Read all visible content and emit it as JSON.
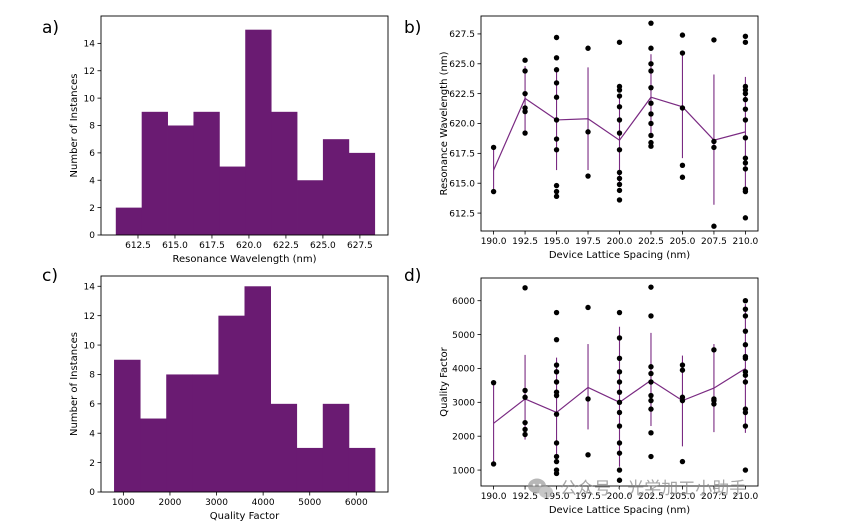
{
  "colors": {
    "bar": "#6a1b72",
    "line": "#7a2a82",
    "point": "#000000",
    "axis": "#000000"
  },
  "watermark": {
    "text": "公众号 · 光学加工小助手",
    "icon": "wechat-icon"
  },
  "chart_data": [
    {
      "id": "a",
      "panel_label": "a)",
      "type": "bar",
      "xlabel": "Resonance Wavelength (nm)",
      "ylabel": "Number of Instances",
      "bin_edges": [
        611.0,
        612.75,
        614.5,
        616.25,
        618.0,
        619.75,
        621.5,
        623.25,
        625.0,
        626.75,
        628.5
      ],
      "values": [
        2,
        9,
        8,
        9,
        5,
        15,
        9,
        4,
        7,
        6
      ],
      "xlim": [
        610.0,
        629.4
      ],
      "ylim": [
        0,
        16
      ],
      "xticks": [
        612.5,
        615.0,
        617.5,
        620.0,
        622.5,
        625.0,
        627.5
      ],
      "xtick_labels": [
        "612.5",
        "615.0",
        "617.5",
        "620.0",
        "622.5",
        "625.0",
        "627.5"
      ],
      "yticks": [
        0,
        2,
        4,
        6,
        8,
        10,
        12,
        14
      ],
      "ytick_labels": [
        "0",
        "2",
        "4",
        "6",
        "8",
        "10",
        "12",
        "14"
      ]
    },
    {
      "id": "b",
      "panel_label": "b)",
      "type": "scatter",
      "xlabel": "Device Lattice Spacing (nm)",
      "ylabel": "Resonance Wavelength (nm)",
      "xlim": [
        189.0,
        211.0
      ],
      "ylim": [
        611.0,
        629.0
      ],
      "xticks": [
        190.0,
        192.5,
        195.0,
        197.5,
        200.0,
        202.5,
        205.0,
        207.5,
        210.0
      ],
      "xtick_labels": [
        "190.0",
        "192.5",
        "195.0",
        "197.5",
        "200.0",
        "202.5",
        "205.0",
        "207.5",
        "210.0"
      ],
      "yticks": [
        612.5,
        615.0,
        617.5,
        620.0,
        622.5,
        625.0,
        627.5
      ],
      "ytick_labels": [
        "612.5",
        "615.0",
        "617.5",
        "620.0",
        "622.5",
        "625.0",
        "627.5"
      ],
      "points": [
        [
          190.0,
          614.3
        ],
        [
          190.0,
          618.0
        ],
        [
          192.5,
          619.2
        ],
        [
          192.5,
          621.0
        ],
        [
          192.5,
          621.3
        ],
        [
          192.5,
          622.5
        ],
        [
          192.5,
          624.4
        ],
        [
          192.5,
          625.3
        ],
        [
          195.0,
          613.9
        ],
        [
          195.0,
          614.3
        ],
        [
          195.0,
          614.8
        ],
        [
          195.0,
          617.8
        ],
        [
          195.0,
          618.7
        ],
        [
          195.0,
          620.3
        ],
        [
          195.0,
          622.2
        ],
        [
          195.0,
          623.4
        ],
        [
          195.0,
          624.5
        ],
        [
          195.0,
          625.5
        ],
        [
          195.0,
          627.2
        ],
        [
          197.5,
          615.6
        ],
        [
          197.5,
          619.3
        ],
        [
          197.5,
          626.3
        ],
        [
          200.0,
          613.6
        ],
        [
          200.0,
          614.4
        ],
        [
          200.0,
          614.9
        ],
        [
          200.0,
          615.4
        ],
        [
          200.0,
          615.9
        ],
        [
          200.0,
          617.8
        ],
        [
          200.0,
          619.2
        ],
        [
          200.0,
          620.3
        ],
        [
          200.0,
          621.4
        ],
        [
          200.0,
          622.3
        ],
        [
          200.0,
          622.8
        ],
        [
          200.0,
          623.1
        ],
        [
          200.0,
          626.8
        ],
        [
          202.5,
          618.1
        ],
        [
          202.5,
          618.4
        ],
        [
          202.5,
          619.0
        ],
        [
          202.5,
          620.0
        ],
        [
          202.5,
          620.8
        ],
        [
          202.5,
          621.7
        ],
        [
          202.5,
          623.0
        ],
        [
          202.5,
          624.4
        ],
        [
          202.5,
          625.0
        ],
        [
          202.5,
          626.3
        ],
        [
          202.5,
          628.4
        ],
        [
          205.0,
          615.5
        ],
        [
          205.0,
          616.5
        ],
        [
          205.0,
          621.3
        ],
        [
          205.0,
          625.9
        ],
        [
          205.0,
          627.4
        ],
        [
          207.5,
          611.4
        ],
        [
          207.5,
          618.0
        ],
        [
          207.5,
          618.5
        ],
        [
          207.5,
          627.0
        ],
        [
          210.0,
          612.1
        ],
        [
          210.0,
          614.3
        ],
        [
          210.0,
          614.5
        ],
        [
          210.0,
          616.2
        ],
        [
          210.0,
          616.7
        ],
        [
          210.0,
          617.1
        ],
        [
          210.0,
          618.8
        ],
        [
          210.0,
          620.3
        ],
        [
          210.0,
          621.2
        ],
        [
          210.0,
          622.0
        ],
        [
          210.0,
          622.5
        ],
        [
          210.0,
          622.8
        ],
        [
          210.0,
          623.1
        ],
        [
          210.0,
          626.8
        ],
        [
          210.0,
          627.3
        ]
      ],
      "mean": [
        616.1,
        622.1,
        620.3,
        620.4,
        618.6,
        622.2,
        621.4,
        618.6,
        619.3
      ],
      "err_low": [
        614.3,
        619.4,
        616.1,
        616.1,
        614.9,
        618.8,
        617.1,
        613.2,
        614.7
      ],
      "err_high": [
        617.9,
        624.8,
        624.5,
        624.7,
        622.4,
        625.8,
        625.7,
        624.1,
        623.9
      ]
    },
    {
      "id": "c",
      "panel_label": "c)",
      "type": "bar",
      "xlabel": "Quality Factor",
      "ylabel": "Number of Instances",
      "bin_edges": [
        800,
        1360,
        1920,
        2480,
        3040,
        3600,
        4160,
        4720,
        5280,
        5840,
        6400
      ],
      "values": [
        9,
        5,
        8,
        8,
        12,
        14,
        6,
        3,
        6,
        3
      ],
      "xlim": [
        520,
        6680
      ],
      "ylim": [
        0,
        14.7
      ],
      "xticks": [
        1000,
        2000,
        3000,
        4000,
        5000,
        6000
      ],
      "xtick_labels": [
        "1000",
        "2000",
        "3000",
        "4000",
        "5000",
        "6000"
      ],
      "yticks": [
        0,
        2,
        4,
        6,
        8,
        10,
        12,
        14
      ],
      "ytick_labels": [
        "0",
        "2",
        "4",
        "6",
        "8",
        "10",
        "12",
        "14"
      ]
    },
    {
      "id": "d",
      "panel_label": "d)",
      "type": "scatter",
      "xlabel": "Device Lattice Spacing (nm)",
      "ylabel": "Quality Factor",
      "xlim": [
        189.0,
        211.0
      ],
      "ylim": [
        530,
        6670
      ],
      "xticks": [
        190.0,
        192.5,
        195.0,
        197.5,
        200.0,
        202.5,
        205.0,
        207.5,
        210.0
      ],
      "xtick_labels": [
        "190.0",
        "192.5",
        "195.0",
        "197.5",
        "200.0",
        "202.5",
        "205.0",
        "207.5",
        "210.0"
      ],
      "yticks": [
        1000,
        2000,
        3000,
        4000,
        5000,
        6000
      ],
      "ytick_labels": [
        "1000",
        "2000",
        "3000",
        "4000",
        "5000",
        "6000"
      ],
      "points": [
        [
          190.0,
          1180
        ],
        [
          190.0,
          3580
        ],
        [
          192.5,
          2050
        ],
        [
          192.5,
          2200
        ],
        [
          192.5,
          2400
        ],
        [
          192.5,
          3150
        ],
        [
          192.5,
          3350
        ],
        [
          192.5,
          6380
        ],
        [
          195.0,
          900
        ],
        [
          195.0,
          1000
        ],
        [
          195.0,
          1250
        ],
        [
          195.0,
          1400
        ],
        [
          195.0,
          1800
        ],
        [
          195.0,
          2650
        ],
        [
          195.0,
          3200
        ],
        [
          195.0,
          3300
        ],
        [
          195.0,
          3600
        ],
        [
          195.0,
          3900
        ],
        [
          195.0,
          4100
        ],
        [
          195.0,
          4850
        ],
        [
          195.0,
          5650
        ],
        [
          197.5,
          1450
        ],
        [
          197.5,
          3100
        ],
        [
          197.5,
          5800
        ],
        [
          200.0,
          700
        ],
        [
          200.0,
          1000
        ],
        [
          200.0,
          1500
        ],
        [
          200.0,
          1800
        ],
        [
          200.0,
          2300
        ],
        [
          200.0,
          2700
        ],
        [
          200.0,
          3000
        ],
        [
          200.0,
          3300
        ],
        [
          200.0,
          3600
        ],
        [
          200.0,
          3900
        ],
        [
          200.0,
          4300
        ],
        [
          200.0,
          4900
        ],
        [
          200.0,
          5650
        ],
        [
          202.5,
          1400
        ],
        [
          202.5,
          2100
        ],
        [
          202.5,
          2800
        ],
        [
          202.5,
          3050
        ],
        [
          202.5,
          3200
        ],
        [
          202.5,
          3600
        ],
        [
          202.5,
          3850
        ],
        [
          202.5,
          4050
        ],
        [
          202.5,
          5550
        ],
        [
          202.5,
          6400
        ],
        [
          205.0,
          1250
        ],
        [
          205.0,
          3050
        ],
        [
          205.0,
          3150
        ],
        [
          205.0,
          3950
        ],
        [
          205.0,
          4100
        ],
        [
          207.5,
          2950
        ],
        [
          207.5,
          3050
        ],
        [
          207.5,
          3100
        ],
        [
          207.5,
          4550
        ],
        [
          210.0,
          1000
        ],
        [
          210.0,
          2300
        ],
        [
          210.0,
          2700
        ],
        [
          210.0,
          2800
        ],
        [
          210.0,
          3600
        ],
        [
          210.0,
          3800
        ],
        [
          210.0,
          3900
        ],
        [
          210.0,
          4300
        ],
        [
          210.0,
          4350
        ],
        [
          210.0,
          4700
        ],
        [
          210.0,
          5100
        ],
        [
          210.0,
          5550
        ],
        [
          210.0,
          5750
        ],
        [
          210.0,
          6000
        ]
      ],
      "mean": [
        2380,
        3100,
        2700,
        3440,
        3000,
        3650,
        3050,
        3420,
        4000
      ],
      "err_low": [
        1170,
        1900,
        1400,
        2200,
        1100,
        2300,
        1700,
        2120,
        2100
      ],
      "err_high": [
        3590,
        4400,
        4320,
        4720,
        5230,
        5050,
        4380,
        4720,
        5900
      ]
    }
  ]
}
